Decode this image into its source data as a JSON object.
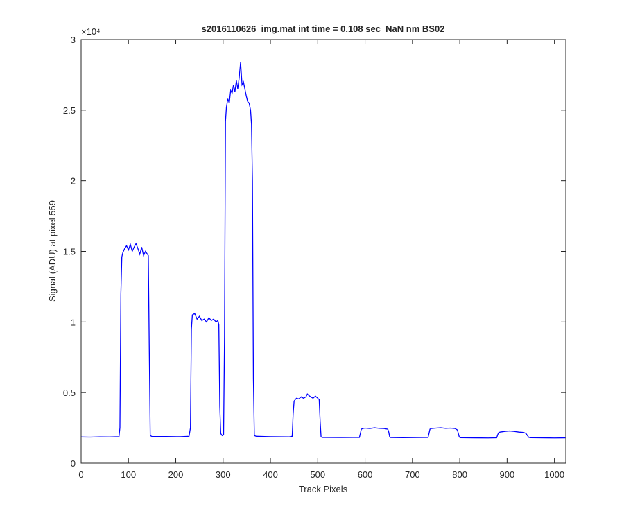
{
  "chart_data": {
    "type": "line",
    "title": "s2016110626_img.mat int time = 0.108 sec  NaN nm BS02",
    "xlabel": "Track Pixels",
    "ylabel": "Signal (ADU) at pixel 559",
    "y_scale_label": "×10⁴",
    "xlim": [
      0,
      1024
    ],
    "ylim": [
      0,
      30000
    ],
    "xticks": [
      0,
      100,
      200,
      300,
      400,
      500,
      600,
      700,
      800,
      900,
      1000
    ],
    "yticks": [
      {
        "value": 0,
        "label": "0"
      },
      {
        "value": 5000,
        "label": "0.5"
      },
      {
        "value": 10000,
        "label": "1"
      },
      {
        "value": 15000,
        "label": "1.5"
      },
      {
        "value": 20000,
        "label": "2"
      },
      {
        "value": 25000,
        "label": "2.5"
      },
      {
        "value": 30000,
        "label": "3"
      }
    ],
    "grid": false,
    "x": [
      0,
      20,
      40,
      60,
      80,
      82,
      84,
      86,
      88,
      92,
      96,
      100,
      104,
      108,
      112,
      116,
      120,
      124,
      128,
      132,
      136,
      140,
      142,
      144,
      146,
      150,
      180,
      210,
      228,
      231,
      233,
      235,
      240,
      245,
      250,
      255,
      260,
      265,
      270,
      275,
      280,
      285,
      289,
      291,
      293,
      295,
      298,
      301,
      303,
      305,
      307,
      310,
      313,
      316,
      319,
      322,
      325,
      328,
      331,
      334,
      337,
      340,
      343,
      346,
      349,
      352,
      355,
      358,
      360,
      362,
      364,
      366,
      370,
      400,
      440,
      446,
      448,
      450,
      455,
      460,
      465,
      470,
      475,
      478,
      481,
      485,
      490,
      495,
      500,
      503,
      505,
      507,
      510,
      550,
      588,
      590,
      592,
      595,
      600,
      610,
      620,
      630,
      640,
      648,
      650,
      652,
      654,
      680,
      710,
      733,
      735,
      737,
      740,
      750,
      760,
      770,
      780,
      790,
      795,
      797,
      799,
      801,
      830,
      860,
      878,
      880,
      882,
      885,
      895,
      905,
      915,
      925,
      935,
      940,
      943,
      946,
      950,
      980,
      1000,
      1023
    ],
    "series": [
      {
        "name": "signal",
        "color": "#0000ff",
        "values": [
          1850,
          1840,
          1860,
          1850,
          1870,
          2500,
          12000,
          14600,
          14900,
          15200,
          15400,
          15100,
          15500,
          15000,
          15300,
          15550,
          15200,
          14800,
          15300,
          14700,
          15000,
          14800,
          14700,
          8000,
          1950,
          1880,
          1880,
          1870,
          1900,
          2500,
          9500,
          10500,
          10600,
          10200,
          10400,
          10100,
          10200,
          10000,
          10300,
          10100,
          10200,
          10000,
          10100,
          9800,
          4000,
          2100,
          1950,
          2000,
          9000,
          24200,
          25200,
          25800,
          25500,
          26400,
          26200,
          26800,
          26300,
          27100,
          26500,
          27300,
          28400,
          26800,
          27000,
          26500,
          26000,
          25600,
          25500,
          25000,
          24000,
          20000,
          6000,
          1950,
          1900,
          1870,
          1860,
          1900,
          3500,
          4400,
          4600,
          4550,
          4700,
          4600,
          4700,
          4900,
          4800,
          4700,
          4600,
          4750,
          4600,
          4500,
          3000,
          1850,
          1820,
          1810,
          1820,
          2100,
          2400,
          2450,
          2480,
          2450,
          2500,
          2460,
          2450,
          2400,
          2200,
          1850,
          1810,
          1800,
          1810,
          1820,
          2100,
          2400,
          2450,
          2480,
          2500,
          2460,
          2480,
          2450,
          2350,
          2100,
          1850,
          1800,
          1790,
          1780,
          1790,
          2000,
          2150,
          2200,
          2250,
          2280,
          2250,
          2200,
          2180,
          2100,
          1950,
          1820,
          1800,
          1790,
          1780,
          1790
        ]
      }
    ]
  }
}
